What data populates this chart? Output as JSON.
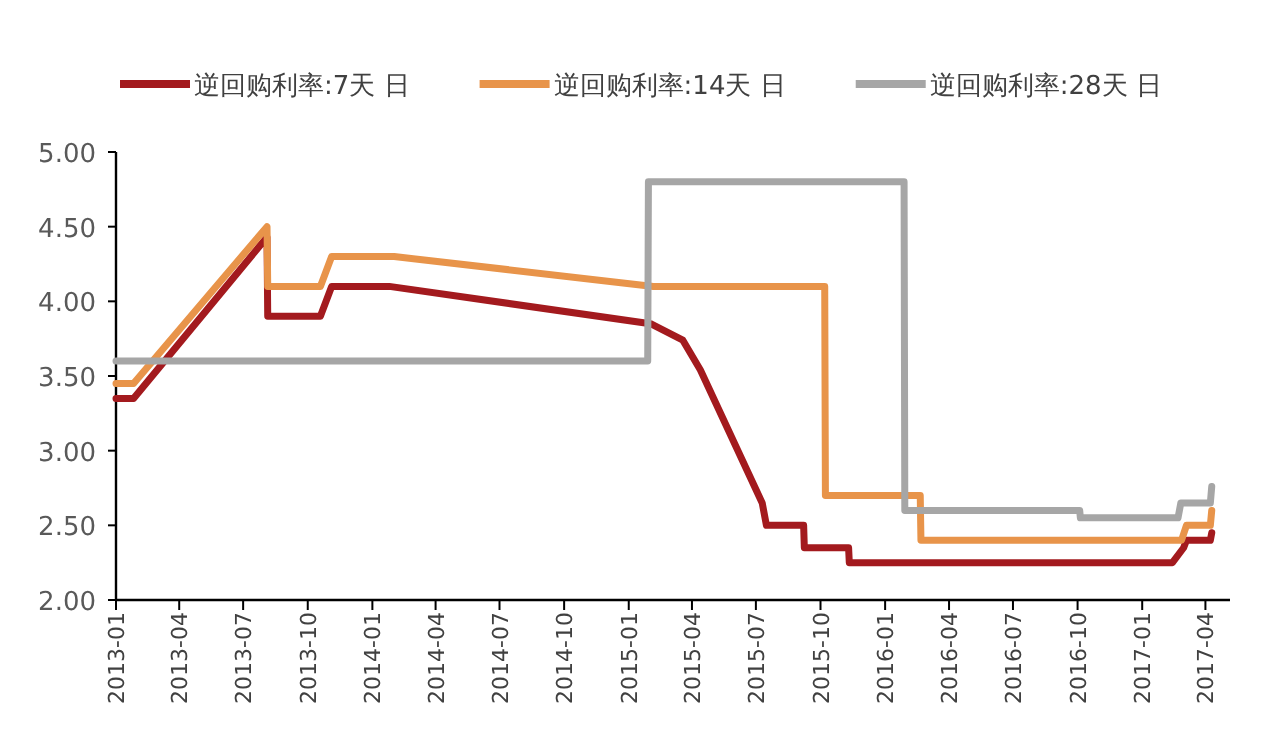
{
  "chart_data": {
    "type": "line",
    "legend": "top",
    "grid": false,
    "marker": "none",
    "line_style": "solid",
    "xlim": [
      "2013-01-01",
      "2017-05-06"
    ],
    "xticks": [
      "2013-01",
      "2013-04",
      "2013-07",
      "2013-10",
      "2014-01",
      "2014-04",
      "2014-07",
      "2014-10",
      "2015-01",
      "2015-04",
      "2015-07",
      "2015-10",
      "2016-01",
      "2016-04",
      "2016-07",
      "2016-10",
      "2017-01",
      "2017-04"
    ],
    "ylim": [
      2,
      5
    ],
    "yticks": [
      {
        "value": 2,
        "label": "2.00"
      },
      {
        "value": 2.5,
        "label": "2.50"
      },
      {
        "value": 3,
        "label": "3.00"
      },
      {
        "value": 3.5,
        "label": "3.50"
      },
      {
        "value": 4,
        "label": "4.00"
      },
      {
        "value": 4.5,
        "label": "4.50"
      },
      {
        "value": 5,
        "label": "5.00"
      }
    ],
    "series": [
      {
        "name": "逆回购利率:7天 日",
        "color": "#a31a1e",
        "x": [
          "2013-01-01",
          "2013-01-26",
          "2013-08-04",
          "2013-08-05",
          "2013-10-19",
          "2013-11-04",
          "2014-01-25",
          "2015-02-01",
          "2015-03-19",
          "2015-04-13",
          "2015-07-10",
          "2015-07-16",
          "2015-09-07",
          "2015-09-08",
          "2015-11-10",
          "2015-11-11",
          "2017-02-13",
          "2017-03-01",
          "2017-03-05",
          "2017-04-08",
          "2017-04-10"
        ],
        "values": [
          3.35,
          3.35,
          4.43,
          3.9,
          3.9,
          4.1,
          4.1,
          3.85,
          3.74,
          3.54,
          2.65,
          2.5,
          2.5,
          2.35,
          2.35,
          2.25,
          2.25,
          2.35,
          2.4,
          2.4,
          2.45
        ]
      },
      {
        "name": "逆回购利率:14天 日",
        "color": "#e8944a",
        "x": [
          "2013-01-01",
          "2013-01-26",
          "2013-08-04",
          "2013-08-05",
          "2013-10-19",
          "2013-11-04",
          "2014-02-01",
          "2015-02-05",
          "2015-10-07",
          "2015-10-08",
          "2016-02-20",
          "2016-02-21",
          "2017-02-26",
          "2017-03-05",
          "2017-04-08",
          "2017-04-10"
        ],
        "values": [
          3.45,
          3.45,
          4.5,
          4.1,
          4.1,
          4.3,
          4.3,
          4.1,
          4.1,
          2.7,
          2.7,
          2.4,
          2.4,
          2.5,
          2.5,
          2.6
        ]
      },
      {
        "name": "逆回购利率:28天 日",
        "color": "#a6a6a6",
        "x": [
          "2013-01-01",
          "2015-01-28",
          "2015-01-29",
          "2016-01-28",
          "2016-01-29",
          "2016-10-04",
          "2016-10-05",
          "2017-02-21",
          "2017-02-25",
          "2017-04-08",
          "2017-04-10"
        ],
        "values": [
          3.6,
          3.6,
          4.8,
          4.8,
          2.6,
          2.6,
          2.55,
          2.55,
          2.65,
          2.65,
          2.76
        ]
      }
    ]
  }
}
